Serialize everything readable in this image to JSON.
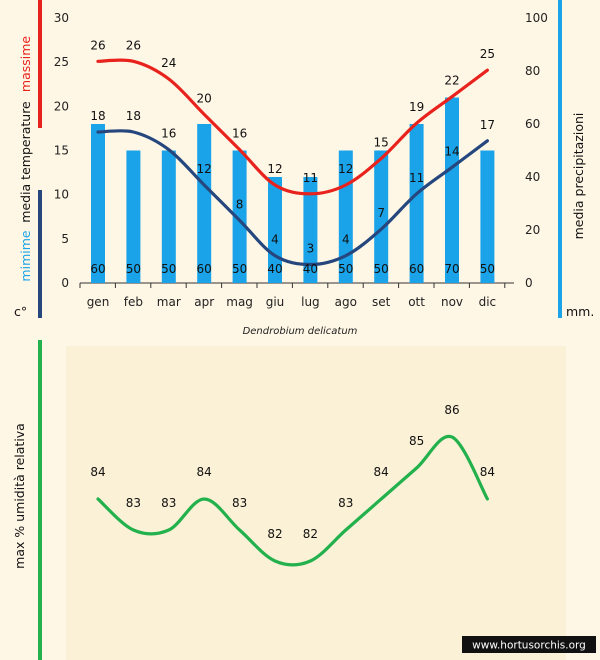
{
  "chart_data": [
    {
      "type": "bar+line",
      "title": "Dendrobium delicatum",
      "categories": [
        "gen",
        "feb",
        "mar",
        "apr",
        "mag",
        "giu",
        "lug",
        "ago",
        "set",
        "ott",
        "nov",
        "dic"
      ],
      "series": [
        {
          "name": "massime",
          "axis": "left",
          "values": [
            26,
            26,
            24,
            20,
            16,
            12,
            11,
            12,
            15,
            19,
            22,
            25
          ]
        },
        {
          "name": "mimime",
          "axis": "left",
          "values": [
            18,
            18,
            16,
            12,
            8,
            4,
            3,
            4,
            7,
            11,
            14,
            17
          ]
        },
        {
          "name": "media precipitazioni",
          "axis": "right",
          "kind": "bar",
          "values": [
            60,
            50,
            50,
            60,
            50,
            40,
            40,
            50,
            50,
            60,
            70,
            50
          ]
        }
      ],
      "left_axis": {
        "ylim": [
          0,
          30
        ],
        "ticks": [
          0,
          5,
          10,
          15,
          20,
          25,
          30
        ],
        "title_top": "massime",
        "title_mid": "media temperature",
        "title_bottom": "mimime",
        "unit": "c°"
      },
      "right_axis": {
        "ylim": [
          0,
          100
        ],
        "ticks": [
          0,
          20,
          40,
          60,
          80,
          100
        ],
        "title": "media precipitazioni",
        "unit": "mm."
      },
      "colors": {
        "max": "#e8221c",
        "min": "#25477e",
        "bars": "#1aa3e8",
        "left_top_bar": "#e8221c",
        "left_bottom_bar": "#25477e",
        "right_bar": "#1aa3e8"
      }
    },
    {
      "type": "line",
      "categories": [
        "gen",
        "feb",
        "mar",
        "apr",
        "mag",
        "giu",
        "lug",
        "ago",
        "set",
        "ott",
        "nov",
        "dic"
      ],
      "series": [
        {
          "name": "max % umidità relativa",
          "values": [
            84,
            83,
            83,
            84,
            83,
            82,
            82,
            83,
            84,
            85,
            86,
            84
          ]
        }
      ],
      "ylabel": "max % umidità relativa",
      "colors": {
        "line": "#22b14c",
        "axis_bar": "#22b14c"
      }
    }
  ],
  "watermark": "www.hortusorchis.org"
}
